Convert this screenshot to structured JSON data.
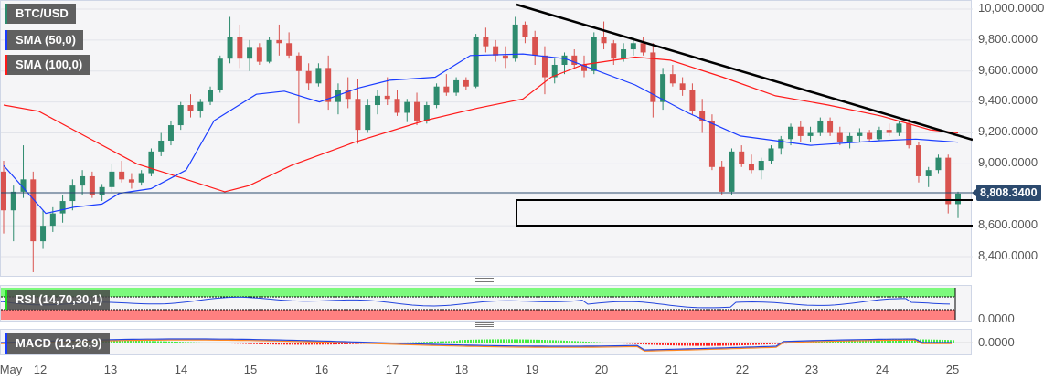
{
  "legend": {
    "symbol": {
      "label": "BTC/USD",
      "color": "#2e8b6e"
    },
    "sma50": {
      "label": "SMA (50,0)",
      "color": "#1a3cff"
    },
    "sma100": {
      "label": "SMA (100,0)",
      "color": "#ff1a1a"
    },
    "rsi": {
      "label": "RSI (14,70,30,1)",
      "color": "#22dd22"
    },
    "macd": {
      "label": "MACD (12,26,9)",
      "color": "#1a3cff"
    }
  },
  "price_axis": {
    "ticks": [
      "10,000.0000",
      "9,800.0000",
      "9,600.0000",
      "9,400.0000",
      "9,200.0000",
      "9,000.0000",
      "8,600.0000",
      "8,400.0000"
    ],
    "current_price": "8,808.3400"
  },
  "rsi_axis": {
    "zero_label": "0.0000"
  },
  "macd_axis": {
    "zero_label": "0.0000"
  },
  "time_axis": {
    "labels": [
      "May",
      "12",
      "13",
      "14",
      "15",
      "16",
      "17",
      "18",
      "19",
      "20",
      "21",
      "22",
      "23",
      "24",
      "25"
    ]
  },
  "colors": {
    "up": "#2e8b6e",
    "down": "#d9534f",
    "sma50": "#1a3cff",
    "sma100": "#ff1a1a",
    "trendline": "#000000",
    "current_line": "#2c4a6e",
    "rsi_overbought": "#7dfa7d",
    "rsi_oversold": "#ff8080"
  },
  "chart_data": {
    "type": "candlestick",
    "title": "BTC/USD",
    "ylim": [
      8300,
      10050
    ],
    "x_ticks": [
      "May",
      "12",
      "13",
      "14",
      "15",
      "16",
      "17",
      "18",
      "19",
      "20",
      "21",
      "22",
      "23",
      "24",
      "25"
    ],
    "y_ticks": [
      8400,
      8600,
      9000,
      9200,
      9400,
      9600,
      9800,
      10000
    ],
    "current_price": 8808.34,
    "candles_ohlc": [
      [
        8950,
        9020,
        8550,
        8700
      ],
      [
        8700,
        8860,
        8500,
        8820
      ],
      [
        8820,
        9120,
        8780,
        8900
      ],
      [
        8900,
        8950,
        8300,
        8500
      ],
      [
        8500,
        8700,
        8450,
        8600
      ],
      [
        8600,
        8720,
        8560,
        8680
      ],
      [
        8680,
        8800,
        8620,
        8760
      ],
      [
        8760,
        8900,
        8700,
        8860
      ],
      [
        8860,
        8960,
        8800,
        8920
      ],
      [
        8920,
        8950,
        8780,
        8800
      ],
      [
        8800,
        8870,
        8760,
        8850
      ],
      [
        8850,
        9000,
        8820,
        8950
      ],
      [
        8950,
        9020,
        8880,
        8900
      ],
      [
        8900,
        8940,
        8840,
        8880
      ],
      [
        8880,
        8960,
        8860,
        8940
      ],
      [
        8940,
        9100,
        8920,
        9080
      ],
      [
        9080,
        9200,
        9050,
        9150
      ],
      [
        9150,
        9280,
        9120,
        9250
      ],
      [
        9250,
        9400,
        9220,
        9380
      ],
      [
        9380,
        9450,
        9300,
        9340
      ],
      [
        9340,
        9420,
        9300,
        9400
      ],
      [
        9400,
        9500,
        9380,
        9480
      ],
      [
        9480,
        9700,
        9460,
        9680
      ],
      [
        9680,
        9950,
        9650,
        9820
      ],
      [
        9820,
        9900,
        9620,
        9680
      ],
      [
        9680,
        9800,
        9600,
        9750
      ],
      [
        9750,
        9780,
        9640,
        9660
      ],
      [
        9660,
        9820,
        9650,
        9800
      ],
      [
        9800,
        9900,
        9700,
        9780
      ],
      [
        9780,
        9850,
        9680,
        9700
      ],
      [
        9700,
        9720,
        9260,
        9600
      ],
      [
        9600,
        9650,
        9480,
        9520
      ],
      [
        9520,
        9650,
        9500,
        9620
      ],
      [
        9620,
        9700,
        9350,
        9400
      ],
      [
        9400,
        9520,
        9320,
        9480
      ],
      [
        9480,
        9560,
        9360,
        9420
      ],
      [
        9420,
        9550,
        9130,
        9220
      ],
      [
        9220,
        9420,
        9200,
        9380
      ],
      [
        9380,
        9480,
        9320,
        9440
      ],
      [
        9440,
        9560,
        9380,
        9420
      ],
      [
        9420,
        9480,
        9310,
        9330
      ],
      [
        9330,
        9420,
        9270,
        9400
      ],
      [
        9400,
        9460,
        9250,
        9280
      ],
      [
        9280,
        9400,
        9260,
        9380
      ],
      [
        9380,
        9520,
        9360,
        9500
      ],
      [
        9500,
        9580,
        9440,
        9460
      ],
      [
        9460,
        9560,
        9440,
        9540
      ],
      [
        9540,
        9560,
        9480,
        9500
      ],
      [
        9500,
        9840,
        9490,
        9820
      ],
      [
        9820,
        9880,
        9720,
        9760
      ],
      [
        9760,
        9800,
        9660,
        9700
      ],
      [
        9700,
        9760,
        9620,
        9680
      ],
      [
        9680,
        9950,
        9660,
        9900
      ],
      [
        9900,
        9920,
        9780,
        9820
      ],
      [
        9820,
        9860,
        9640,
        9700
      ],
      [
        9700,
        9760,
        9450,
        9560
      ],
      [
        9560,
        9680,
        9520,
        9640
      ],
      [
        9640,
        9720,
        9580,
        9700
      ],
      [
        9700,
        9740,
        9620,
        9640
      ],
      [
        9640,
        9700,
        9560,
        9600
      ],
      [
        9600,
        9850,
        9580,
        9820
      ],
      [
        9820,
        9920,
        9740,
        9780
      ],
      [
        9780,
        9800,
        9640,
        9680
      ],
      [
        9680,
        9780,
        9660,
        9740
      ],
      [
        9740,
        9820,
        9700,
        9780
      ],
      [
        9780,
        9820,
        9700,
        9720
      ],
      [
        9720,
        9780,
        9300,
        9400
      ],
      [
        9400,
        9620,
        9350,
        9580
      ],
      [
        9580,
        9640,
        9500,
        9520
      ],
      [
        9520,
        9560,
        9440,
        9480
      ],
      [
        9480,
        9520,
        9320,
        9340
      ],
      [
        9340,
        9420,
        9200,
        9280
      ],
      [
        9280,
        9320,
        8960,
        8980
      ],
      [
        8980,
        9020,
        8800,
        8820
      ],
      [
        8820,
        9100,
        8800,
        9080
      ],
      [
        9080,
        9120,
        8980,
        9000
      ],
      [
        9000,
        9060,
        8940,
        8960
      ],
      [
        8960,
        9040,
        8900,
        9020
      ],
      [
        9020,
        9120,
        9000,
        9100
      ],
      [
        9100,
        9180,
        9060,
        9160
      ],
      [
        9160,
        9260,
        9120,
        9240
      ],
      [
        9240,
        9280,
        9140,
        9180
      ],
      [
        9180,
        9240,
        9140,
        9200
      ],
      [
        9200,
        9300,
        9180,
        9280
      ],
      [
        9280,
        9300,
        9180,
        9200
      ],
      [
        9200,
        9240,
        9120,
        9140
      ],
      [
        9140,
        9200,
        9100,
        9180
      ],
      [
        9180,
        9230,
        9140,
        9200
      ],
      [
        9200,
        9220,
        9140,
        9160
      ],
      [
        9160,
        9240,
        9150,
        9220
      ],
      [
        9220,
        9260,
        9180,
        9200
      ],
      [
        9200,
        9280,
        9180,
        9260
      ],
      [
        9260,
        9290,
        9100,
        9120
      ],
      [
        9120,
        9140,
        8880,
        8920
      ],
      [
        8920,
        8980,
        8850,
        8960
      ],
      [
        8960,
        9060,
        8940,
        9040
      ],
      [
        9040,
        9060,
        8680,
        8740
      ],
      [
        8740,
        8820,
        8650,
        8808
      ]
    ],
    "sma50": [
      [
        0,
        8990
      ],
      [
        120,
        8680
      ],
      [
        200,
        8720
      ],
      [
        280,
        8740
      ],
      [
        330,
        8810
      ],
      [
        420,
        8840
      ],
      [
        520,
        8960
      ],
      [
        600,
        9280
      ],
      [
        720,
        9450
      ],
      [
        800,
        9470
      ],
      [
        900,
        9400
      ],
      [
        1010,
        9490
      ],
      [
        1100,
        9540
      ],
      [
        1230,
        9560
      ],
      [
        1330,
        9700
      ],
      [
        1480,
        9710
      ],
      [
        1600,
        9680
      ],
      [
        1800,
        9510
      ],
      [
        1950,
        9330
      ],
      [
        2100,
        9180
      ],
      [
        2300,
        9120
      ],
      [
        2500,
        9150
      ],
      [
        2600,
        9160
      ],
      [
        2720,
        9140
      ]
    ],
    "sma100": [
      [
        0,
        9380
      ],
      [
        100,
        9340
      ],
      [
        240,
        9170
      ],
      [
        380,
        9000
      ],
      [
        520,
        8900
      ],
      [
        630,
        8820
      ],
      [
        700,
        8860
      ],
      [
        820,
        8990
      ],
      [
        1000,
        9140
      ],
      [
        1200,
        9280
      ],
      [
        1350,
        9360
      ],
      [
        1480,
        9420
      ],
      [
        1560,
        9560
      ],
      [
        1650,
        9640
      ],
      [
        1800,
        9690
      ],
      [
        1900,
        9670
      ],
      [
        2050,
        9560
      ],
      [
        2200,
        9440
      ],
      [
        2350,
        9380
      ],
      [
        2500,
        9310
      ],
      [
        2640,
        9220
      ],
      [
        2720,
        9200
      ]
    ],
    "trendline": {
      "from": {
        "date": "May 18.8",
        "price": 10020
      },
      "to": {
        "date": "May 25.1",
        "price": 9160
      }
    },
    "support_box": {
      "price_top": 8760,
      "price_bottom": 8600,
      "x_start": "May 18.8",
      "x_end": "May 25.1"
    }
  }
}
